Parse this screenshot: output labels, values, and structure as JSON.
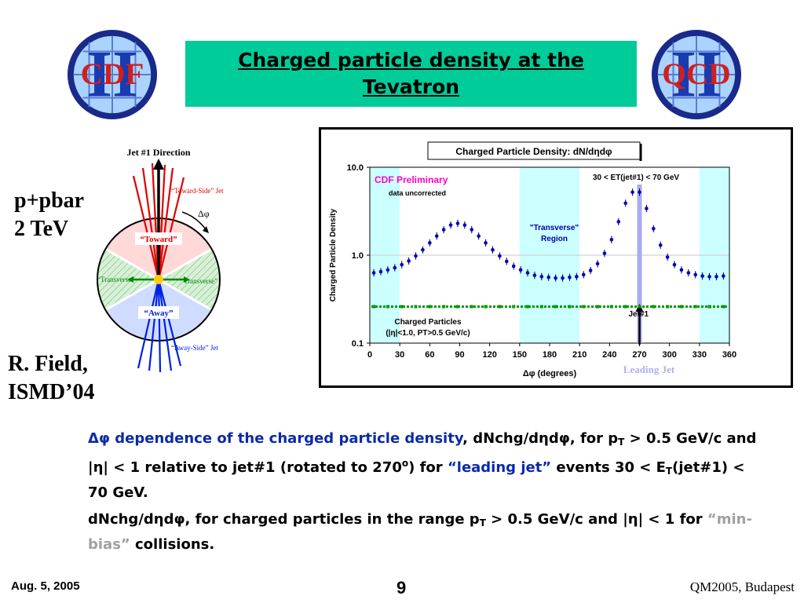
{
  "slide": {
    "title_line1": "Charged particle density at the",
    "title_line2": "Tevatron",
    "logo_left_text": "CDF",
    "logo_left_roman": "II",
    "logo_right_text": "QCD",
    "logo_right_roman": "II",
    "collision_line1": "p+pbar",
    "collision_line2": "2 TeV",
    "author_line1": "R. Field,",
    "author_line2": "ISMD’04",
    "footer_date": "Aug. 5, 2005",
    "footer_page": "9",
    "footer_conf": "QM2005, Budapest"
  },
  "diagram": {
    "jet_direction": "Jet #1 Direction",
    "toward_side_jet": "“Toward-Side” Jet",
    "delta_phi": "Δφ",
    "toward": "“Toward”",
    "transverse_left": "“Transverse”",
    "transverse_right": "“Transverse”",
    "away": "“Away”",
    "away_side_jet": "“Away-Side” Jet"
  },
  "para1": {
    "p1": "Δφ dependence of the charged particle density",
    "p2": ", dNchg/dηdφ, for p",
    "p2_sub": "T",
    "p3": " > 0.5 GeV/c and |η| < 1 relative to jet#1 (rotated to 270",
    "p3_sup": "o",
    "p4": ")  for ",
    "p5": "“leading jet”",
    "p6": " events 30 < E",
    "p6_sub": "T",
    "p7": "(jet#1) < 70 GeV."
  },
  "para2": {
    "p1": "dNchg/dηdφ, for charged particles in the range p",
    "p1_sub": "T",
    "p2": " > 0.5 GeV/c and |η| < 1 for ",
    "p3": "“min-bias”",
    "p4": " collisions."
  },
  "chart_data": {
    "type": "scatter",
    "title": "Charged Particle Density: dN/dηdφ",
    "xlabel": "Δφ  (degrees)",
    "ylabel": "Charged Particle Density",
    "xlim": [
      0,
      360
    ],
    "ylim": [
      0.1,
      10
    ],
    "log_y": true,
    "x_ticks": [
      0,
      30,
      60,
      90,
      120,
      150,
      180,
      210,
      240,
      270,
      300,
      330,
      360
    ],
    "y_ticks": [
      {
        "v": 0.1,
        "label": "0.1"
      },
      {
        "v": 1,
        "label": "1.0"
      },
      {
        "v": 10,
        "label": "10.0"
      }
    ],
    "gridlines_y": [
      1.0
    ],
    "transverse_bands": [
      [
        0,
        30
      ],
      [
        150,
        210
      ],
      [
        330,
        360
      ]
    ],
    "annotations": {
      "preliminary": "CDF Preliminary",
      "uncorrected": "data uncorrected",
      "cut": "30 < ET(jet#1) < 70 GeV",
      "transverse_line1": "\"Transverse\"",
      "transverse_line2": "Region",
      "charged1": "Charged Particles",
      "charged2": "(|η|<1.0, PT>0.5 GeV/c)",
      "jet1": "Jet#1",
      "leading_jet": "Leading Jet"
    },
    "colors": {
      "band": "#ccffff",
      "leading": "#0000cc",
      "minbias": "#009900",
      "jetline": "#aaaaee",
      "preliminary": "#ff00cc"
    },
    "series": [
      {
        "name": "Leading Jet",
        "x": [
          4,
          11,
          18,
          25,
          32,
          39,
          46,
          53,
          60,
          67,
          74,
          81,
          88,
          95,
          102,
          109,
          116,
          123,
          130,
          137,
          144,
          151,
          158,
          165,
          172,
          179,
          186,
          193,
          200,
          207,
          214,
          221,
          228,
          235,
          242,
          249,
          256,
          263,
          270,
          277,
          284,
          291,
          298,
          305,
          312,
          319,
          326,
          333,
          340,
          347,
          354
        ],
        "y": [
          0.63,
          0.65,
          0.68,
          0.72,
          0.78,
          0.86,
          0.98,
          1.15,
          1.38,
          1.65,
          1.95,
          2.2,
          2.3,
          2.2,
          1.95,
          1.65,
          1.38,
          1.15,
          0.98,
          0.85,
          0.75,
          0.68,
          0.63,
          0.59,
          0.57,
          0.56,
          0.55,
          0.55,
          0.56,
          0.57,
          0.6,
          0.67,
          0.8,
          1.05,
          1.5,
          2.4,
          3.9,
          5.2,
          5.2,
          3.4,
          2.0,
          1.3,
          0.95,
          0.78,
          0.68,
          0.63,
          0.6,
          0.58,
          0.57,
          0.57,
          0.58
        ]
      },
      {
        "name": "Charged Particles",
        "x": [
          4,
          11,
          18,
          25,
          32,
          39,
          46,
          53,
          60,
          67,
          74,
          81,
          88,
          95,
          102,
          109,
          116,
          123,
          130,
          137,
          144,
          151,
          158,
          165,
          172,
          179,
          186,
          193,
          200,
          207,
          214,
          221,
          228,
          235,
          242,
          249,
          256,
          263,
          270,
          277,
          284,
          291,
          298,
          305,
          312,
          319,
          326,
          333,
          340,
          347,
          354
        ],
        "y": [
          0.26,
          0.26,
          0.26,
          0.26,
          0.26,
          0.26,
          0.26,
          0.26,
          0.26,
          0.26,
          0.26,
          0.26,
          0.26,
          0.26,
          0.26,
          0.26,
          0.26,
          0.26,
          0.26,
          0.26,
          0.26,
          0.26,
          0.26,
          0.26,
          0.26,
          0.26,
          0.26,
          0.26,
          0.26,
          0.26,
          0.26,
          0.26,
          0.26,
          0.26,
          0.26,
          0.26,
          0.26,
          0.26,
          0.26,
          0.26,
          0.26,
          0.26,
          0.26,
          0.26,
          0.26,
          0.26,
          0.26,
          0.26,
          0.26,
          0.26,
          0.26
        ]
      }
    ]
  }
}
